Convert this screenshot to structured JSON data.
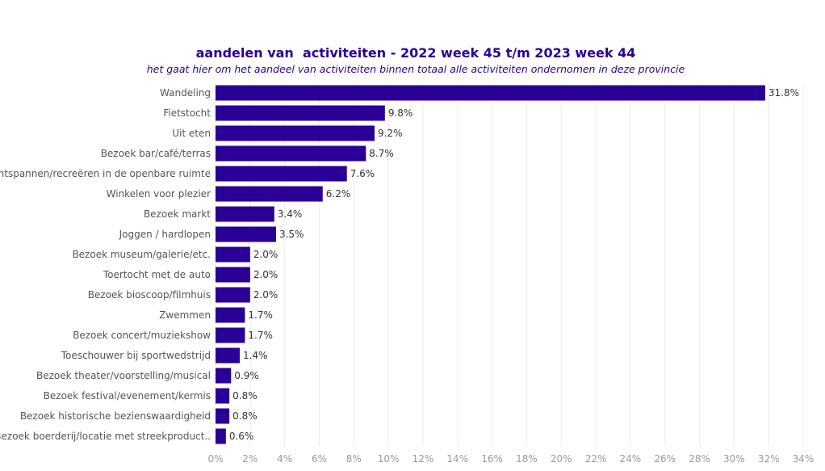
{
  "chart_data": {
    "type": "bar",
    "orientation": "horizontal",
    "title": "aandelen van  activiteiten - 2022 week 45 t/m 2023 week 44",
    "subtitle": "het gaat hier om het aandeel van activiteiten binnen totaal alle activiteiten ondernomen in deze provincie",
    "categories": [
      "Wandeling",
      "Fietstocht",
      "Uit eten",
      "Bezoek bar/café/terras",
      "Ontspannen/recreëren in de openbare ruimte",
      "Winkelen voor plezier",
      "Bezoek markt",
      "Joggen / hardlopen",
      "Bezoek museum/galerie/etc.",
      "Toertocht met de auto",
      "Bezoek bioscoop/filmhuis",
      "Zwemmen",
      "Bezoek concert/muziekshow",
      "Toeschouwer bij sportwedstrijd",
      "Bezoek theater/voorstelling/musical",
      "Bezoek festival/evenement/kermis",
      "Bezoek historische bezienswaardigheid",
      "Bezoek boerderij/locatie met streekproduct.."
    ],
    "values": [
      31.8,
      9.8,
      9.2,
      8.7,
      7.6,
      6.2,
      3.4,
      3.5,
      2.0,
      2.0,
      2.0,
      1.7,
      1.7,
      1.4,
      0.9,
      0.8,
      0.8,
      0.6
    ],
    "value_labels": [
      "31.8%",
      "9.8%",
      "9.2%",
      "8.7%",
      "7.6%",
      "6.2%",
      "3.4%",
      "3.5%",
      "2.0%",
      "2.0%",
      "2.0%",
      "1.7%",
      "1.7%",
      "1.4%",
      "0.9%",
      "0.8%",
      "0.8%",
      "0.6%"
    ],
    "xlim": [
      0,
      34
    ],
    "xticks": [
      "0%",
      "2%",
      "4%",
      "6%",
      "8%",
      "10%",
      "12%",
      "14%",
      "16%",
      "18%",
      "20%",
      "22%",
      "24%",
      "26%",
      "28%",
      "30%",
      "32%",
      "34%"
    ],
    "grid": true,
    "legend": "none",
    "bar_color": "#2a0096"
  }
}
